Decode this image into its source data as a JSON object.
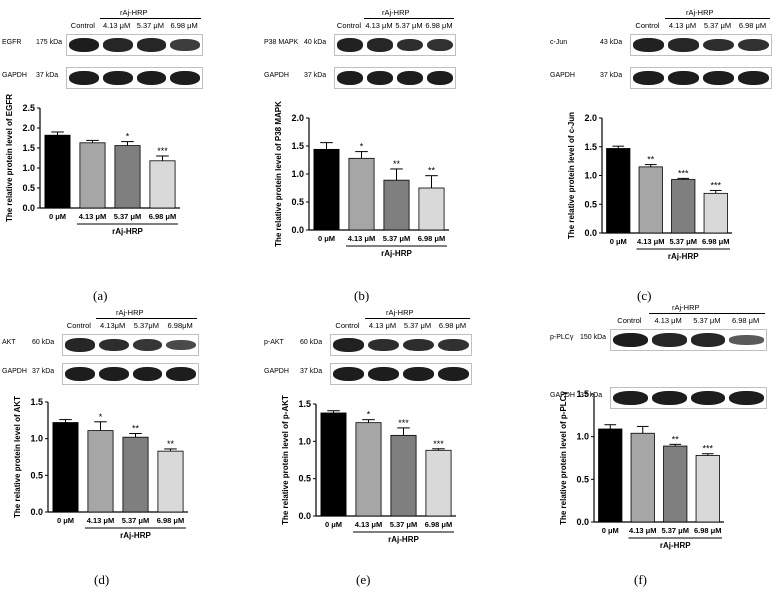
{
  "panels": [
    {
      "id": "a",
      "letter": "(a)",
      "blot": {
        "group_label": "rAj-HRP",
        "lane_labels": [
          "Control",
          "4.13 μM",
          "5.37 μM",
          "6.98 μM"
        ],
        "rows": [
          {
            "label": "EGFR",
            "kda": "175 kDa",
            "intensity": [
              1.0,
              0.92,
              0.9,
              0.7
            ]
          },
          {
            "label": "GAPDH",
            "kda": "37 kDa",
            "intensity": [
              1.0,
              1.0,
              1.0,
              1.0
            ]
          }
        ]
      }
    },
    {
      "id": "b",
      "letter": "(b)",
      "blot": {
        "group_label": "rAj-HRP",
        "lane_labels": [
          "Control",
          "4.13 μM",
          "5.37 μM",
          "6.98 μM"
        ],
        "rows": [
          {
            "label": "P38 MAPK",
            "kda": "40 kDa",
            "intensity": [
              0.95,
              0.9,
              0.85,
              0.8
            ]
          },
          {
            "label": "GAPDH",
            "kda": "37 kDa",
            "intensity": [
              1.0,
              1.0,
              1.0,
              1.0
            ]
          }
        ]
      }
    },
    {
      "id": "c",
      "letter": "(c)",
      "blot": {
        "group_label": "rAj-HRP",
        "lane_labels": [
          "Control",
          "4.13 μM",
          "5.37 μM",
          "6.98 μM"
        ],
        "rows": [
          {
            "label": "c-Jun",
            "kda": "43 kDa",
            "intensity": [
              0.95,
              0.9,
              0.85,
              0.8
            ]
          },
          {
            "label": "GAPDH",
            "kda": "37 kDa",
            "intensity": [
              1.0,
              1.0,
              1.0,
              1.0
            ]
          }
        ]
      }
    },
    {
      "id": "d",
      "letter": "(d)",
      "blot": {
        "group_label": "rAj-HRP",
        "lane_labels": [
          "Control",
          "4.13μM",
          "5.37μM",
          "6.98μM"
        ],
        "rows": [
          {
            "label": "AKT",
            "kda": "60 kDa",
            "intensity": [
              0.9,
              0.85,
              0.75,
              0.55
            ]
          },
          {
            "label": "GAPDH",
            "kda": "37 kDa",
            "intensity": [
              1.0,
              1.0,
              1.0,
              1.0
            ]
          }
        ]
      }
    },
    {
      "id": "e",
      "letter": "(e)",
      "blot": {
        "group_label": "rAj-HRP",
        "lane_labels": [
          "Control",
          "4.13 μM",
          "5.37 μM",
          "6.98 μM"
        ],
        "rows": [
          {
            "label": "p-AKT",
            "kda": "60 kDa",
            "intensity": [
              0.95,
              0.85,
              0.85,
              0.8
            ]
          },
          {
            "label": "GAPDH",
            "kda": "37 kDa",
            "intensity": [
              1.0,
              1.0,
              1.0,
              1.0
            ]
          }
        ]
      }
    },
    {
      "id": "f",
      "letter": "(f)",
      "blot": {
        "group_label": "rAj-HRP",
        "lane_labels": [
          "Control",
          "4.13 μM",
          "5.37 μM",
          "6.98 μM"
        ],
        "rows": [
          {
            "label": "p-PLCγ",
            "kda": "150 kDa",
            "intensity": [
              1.0,
              0.9,
              0.9,
              0.4
            ]
          },
          {
            "label": "GAPDH",
            "kda": "37 kDa",
            "intensity": [
              1.0,
              1.0,
              1.0,
              1.0
            ]
          }
        ]
      }
    }
  ],
  "chart_data": [
    {
      "type": "bar",
      "panel": "a",
      "categories": [
        "0 μM",
        "4.13 μM",
        "5.37 μM",
        "6.98 μM"
      ],
      "values": [
        1.82,
        1.63,
        1.56,
        1.18
      ],
      "errors": [
        0.08,
        0.06,
        0.1,
        0.12
      ],
      "significance": [
        "",
        "",
        "*",
        "***"
      ],
      "group_label": "rAj-HRP",
      "ylabel": "The relative protein level of EGFR",
      "ylim": [
        0,
        2.5
      ],
      "yticks": [
        "0.0",
        "0.5",
        "1.0",
        "1.5",
        "2.0",
        "2.5"
      ],
      "bar_colors": [
        "#000000",
        "#a6a6a6",
        "#7f7f7f",
        "#d9d9d9"
      ]
    },
    {
      "type": "bar",
      "panel": "b",
      "categories": [
        "0 μM",
        "4.13 μM",
        "5.37 μM",
        "6.98 μM"
      ],
      "values": [
        1.44,
        1.28,
        0.89,
        0.75
      ],
      "errors": [
        0.12,
        0.12,
        0.2,
        0.22
      ],
      "significance": [
        "",
        "*",
        "**",
        "**"
      ],
      "group_label": "rAj-HRP",
      "ylabel": "The relative protein level of P38 MAPK",
      "ylim": [
        0,
        2.0
      ],
      "yticks": [
        "0.0",
        "0.5",
        "1.0",
        "1.5",
        "2.0"
      ],
      "bar_colors": [
        "#000000",
        "#a6a6a6",
        "#7f7f7f",
        "#d9d9d9"
      ]
    },
    {
      "type": "bar",
      "panel": "c",
      "categories": [
        "0 μM",
        "4.13 μM",
        "5.37 μM",
        "6.98 μM"
      ],
      "values": [
        1.47,
        1.15,
        0.93,
        0.69
      ],
      "errors": [
        0.04,
        0.04,
        0.02,
        0.05
      ],
      "significance": [
        "",
        "**",
        "***",
        "***"
      ],
      "group_label": "rAj-HRP",
      "ylabel": "The relative protein level of c-Jun",
      "ylim": [
        0,
        2.0
      ],
      "yticks": [
        "0.0",
        "0.5",
        "1.0",
        "1.5",
        "2.0"
      ],
      "bar_colors": [
        "#000000",
        "#a6a6a6",
        "#7f7f7f",
        "#d9d9d9"
      ]
    },
    {
      "type": "bar",
      "panel": "d",
      "categories": [
        "0 μM",
        "4.13 μM",
        "5.37 μM",
        "6.98 μM"
      ],
      "values": [
        1.22,
        1.11,
        1.02,
        0.83
      ],
      "errors": [
        0.04,
        0.12,
        0.05,
        0.03
      ],
      "significance": [
        "",
        "*",
        "**",
        "**"
      ],
      "group_label": "rAj-HRP",
      "ylabel": "The relative protein level of AKT",
      "ylim": [
        0,
        1.5
      ],
      "yticks": [
        "0.0",
        "0.5",
        "1.0",
        "1.5"
      ],
      "bar_colors": [
        "#000000",
        "#a6a6a6",
        "#7f7f7f",
        "#d9d9d9"
      ]
    },
    {
      "type": "bar",
      "panel": "e",
      "categories": [
        "0 μM",
        "4.13 μM",
        "5.37 μM",
        "6.98 μM"
      ],
      "values": [
        1.38,
        1.25,
        1.08,
        0.88
      ],
      "errors": [
        0.03,
        0.04,
        0.1,
        0.02
      ],
      "significance": [
        "",
        "*",
        "***",
        "***"
      ],
      "group_label": "rAj-HRP",
      "ylabel": "The relative protein level of p-AKT",
      "ylim": [
        0,
        1.5
      ],
      "yticks": [
        "0.0",
        "0.5",
        "1.0",
        "1.5"
      ],
      "bar_colors": [
        "#000000",
        "#a6a6a6",
        "#7f7f7f",
        "#d9d9d9"
      ]
    },
    {
      "type": "bar",
      "panel": "f",
      "categories": [
        "0 μM",
        "4.13 μM",
        "5.37 μM",
        "6.98 μM"
      ],
      "values": [
        1.09,
        1.04,
        0.89,
        0.78
      ],
      "errors": [
        0.05,
        0.08,
        0.02,
        0.02
      ],
      "significance": [
        "",
        "",
        "**",
        "***"
      ],
      "group_label": "rAj-HRP",
      "ylabel": "The relative protein level of p-PLCγ",
      "ylim": [
        0,
        1.5
      ],
      "yticks": [
        "0.0",
        "0.5",
        "1.0",
        "1.5"
      ],
      "bar_colors": [
        "#000000",
        "#a6a6a6",
        "#7f7f7f",
        "#d9d9d9"
      ]
    }
  ]
}
